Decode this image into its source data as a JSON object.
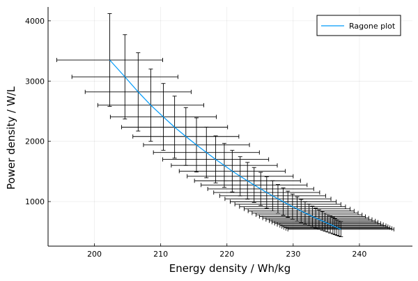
{
  "chart_data": {
    "type": "line",
    "title": "",
    "xlabel": "Energy density / Wh/kg",
    "ylabel": "Power density / W/L",
    "xlim": [
      193,
      248
    ],
    "ylim": [
      260,
      4230
    ],
    "grid": true,
    "legend_position": "top-right",
    "x_ticks": [
      200,
      210,
      220,
      230,
      240
    ],
    "y_ticks": [
      1000,
      2000,
      3000,
      4000
    ],
    "series": [
      {
        "name": "Ragone plot",
        "color": "#009AFA",
        "points": [
          {
            "x": 202.3,
            "y": 3350,
            "yerr": 770,
            "xerr": 8.0
          },
          {
            "x": 204.6,
            "y": 3070,
            "yerr": 700,
            "xerr": 8.0
          },
          {
            "x": 206.6,
            "y": 2820,
            "yerr": 650,
            "xerr": 8.0
          },
          {
            "x": 208.5,
            "y": 2600,
            "yerr": 600,
            "xerr": 8.0
          },
          {
            "x": 210.4,
            "y": 2405,
            "yerr": 555,
            "xerr": 8.0
          },
          {
            "x": 212.1,
            "y": 2235,
            "yerr": 515,
            "xerr": 8.0
          },
          {
            "x": 213.8,
            "y": 2080,
            "yerr": 480,
            "xerr": 8.0
          },
          {
            "x": 215.4,
            "y": 1940,
            "yerr": 450,
            "xerr": 8.0
          },
          {
            "x": 216.9,
            "y": 1815,
            "yerr": 420,
            "xerr": 8.0
          },
          {
            "x": 218.3,
            "y": 1700,
            "yerr": 390,
            "xerr": 8.0
          },
          {
            "x": 219.6,
            "y": 1600,
            "yerr": 365,
            "xerr": 8.0
          },
          {
            "x": 220.8,
            "y": 1505,
            "yerr": 345,
            "xerr": 8.0
          },
          {
            "x": 222.0,
            "y": 1420,
            "yerr": 325,
            "xerr": 8.0
          },
          {
            "x": 223.1,
            "y": 1345,
            "yerr": 305,
            "xerr": 8.0
          },
          {
            "x": 224.1,
            "y": 1275,
            "yerr": 290,
            "xerr": 8.0
          },
          {
            "x": 225.1,
            "y": 1210,
            "yerr": 275,
            "xerr": 8.0
          },
          {
            "x": 226.0,
            "y": 1150,
            "yerr": 262,
            "xerr": 8.0
          },
          {
            "x": 226.9,
            "y": 1095,
            "yerr": 250,
            "xerr": 8.0
          },
          {
            "x": 227.7,
            "y": 1045,
            "yerr": 238,
            "xerr": 8.0
          },
          {
            "x": 228.5,
            "y": 998,
            "yerr": 228,
            "xerr": 8.0
          },
          {
            "x": 229.2,
            "y": 955,
            "yerr": 218,
            "xerr": 8.0
          },
          {
            "x": 229.9,
            "y": 915,
            "yerr": 209,
            "xerr": 8.0
          },
          {
            "x": 230.6,
            "y": 878,
            "yerr": 200,
            "xerr": 8.0
          },
          {
            "x": 231.2,
            "y": 843,
            "yerr": 192,
            "xerr": 8.0
          },
          {
            "x": 231.8,
            "y": 810,
            "yerr": 185,
            "xerr": 8.0
          },
          {
            "x": 232.4,
            "y": 780,
            "yerr": 178,
            "xerr": 8.0
          },
          {
            "x": 232.9,
            "y": 752,
            "yerr": 171,
            "xerr": 8.0
          },
          {
            "x": 233.4,
            "y": 726,
            "yerr": 165,
            "xerr": 8.0
          },
          {
            "x": 233.9,
            "y": 702,
            "yerr": 160,
            "xerr": 8.0
          },
          {
            "x": 234.4,
            "y": 679,
            "yerr": 155,
            "xerr": 8.0
          },
          {
            "x": 234.8,
            "y": 658,
            "yerr": 150,
            "xerr": 8.0
          },
          {
            "x": 235.2,
            "y": 638,
            "yerr": 145,
            "xerr": 8.0
          },
          {
            "x": 235.6,
            "y": 619,
            "yerr": 141,
            "xerr": 8.0
          },
          {
            "x": 236.0,
            "y": 601,
            "yerr": 137,
            "xerr": 8.0
          },
          {
            "x": 236.3,
            "y": 584,
            "yerr": 133,
            "xerr": 8.0
          },
          {
            "x": 236.6,
            "y": 568,
            "yerr": 129,
            "xerr": 8.0
          },
          {
            "x": 236.9,
            "y": 553,
            "yerr": 126,
            "xerr": 8.0
          },
          {
            "x": 237.2,
            "y": 540,
            "yerr": 123,
            "xerr": 8.0
          }
        ]
      }
    ]
  }
}
